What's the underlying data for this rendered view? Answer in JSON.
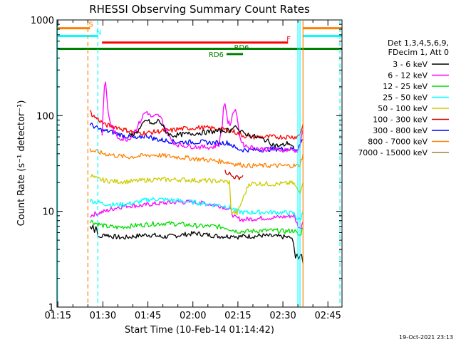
{
  "chart_data": {
    "type": "line",
    "title": "RHESSI Observing Summary Count Rates",
    "xlabel": "Start Time (10-Feb-14 01:14:42)",
    "ylabel": "Count Rate (s⁻¹ detector⁻¹)",
    "x_unit": "minutes after 01:14:42",
    "xlim": [
      0,
      95
    ],
    "ylim": [
      1,
      1000
    ],
    "yscale": "log",
    "x_ticks": [
      {
        "x": 0.3,
        "label": "01:15"
      },
      {
        "x": 15.3,
        "label": "01:30"
      },
      {
        "x": 30.3,
        "label": "01:45"
      },
      {
        "x": 45.3,
        "label": "02:00"
      },
      {
        "x": 60.3,
        "label": "02:15"
      },
      {
        "x": 75.3,
        "label": "02:30"
      },
      {
        "x": 90.3,
        "label": "02:45"
      }
    ],
    "y_ticks": [
      {
        "y": 1,
        "label": "1"
      },
      {
        "y": 10,
        "label": "10"
      },
      {
        "y": 100,
        "label": "100"
      },
      {
        "y": 1000,
        "label": "1000"
      }
    ],
    "legend": {
      "placement": "right",
      "header": [
        "Det 1,3,4,5,6,9,",
        "FDecim 1, Att 0"
      ]
    },
    "series": [
      {
        "name": "3 - 6 keV",
        "color": "#000000",
        "x": [
          11,
          11.5,
          12,
          12.5,
          13,
          14,
          16,
          18,
          22,
          26,
          30,
          33,
          35,
          38,
          42,
          46,
          50,
          54,
          56,
          58,
          58.5,
          60,
          62,
          64,
          66,
          68,
          72,
          76,
          78,
          79,
          79.5,
          80,
          80.5,
          81,
          81.5,
          82
        ],
        "y": [
          7,
          6.5,
          7.5,
          6.2,
          7,
          5.2,
          5.8,
          5.5,
          5.3,
          5.5,
          5.7,
          5.6,
          5.4,
          5.5,
          5.7,
          5.9,
          5.7,
          5.5,
          5.5,
          5.5,
          5.7,
          5.4,
          5.5,
          5.5,
          5.5,
          5.6,
          5.5,
          5.4,
          5.3,
          4.5,
          3.3,
          3.6,
          3.0,
          3.4,
          3.7,
          2.8
        ]
      },
      {
        "name": "6 - 12 keV",
        "color": "#ff00ff",
        "x": [
          11,
          13,
          16,
          18,
          20,
          24,
          27,
          29,
          30,
          33,
          35,
          40,
          45,
          50,
          54,
          56,
          58,
          59,
          60,
          62,
          64,
          66,
          68,
          72,
          76,
          78,
          79,
          80,
          81,
          82
        ],
        "y": [
          9,
          9.5,
          10,
          10.5,
          11,
          11.5,
          11.5,
          11.5,
          11.8,
          12,
          12.2,
          12.5,
          12.5,
          12,
          11.5,
          11,
          10.2,
          8.7,
          8.5,
          8.2,
          8.3,
          8.4,
          8.5,
          8.6,
          8.8,
          9,
          9,
          7.5,
          6.5,
          8
        ]
      },
      {
        "name": "12 - 25 keV",
        "color": "#00dd00",
        "x": [
          11,
          13,
          16,
          20,
          24,
          28,
          32,
          36,
          40,
          44,
          48,
          52,
          56,
          58,
          60,
          64,
          68,
          72,
          76,
          79,
          81,
          82
        ],
        "y": [
          8,
          7.5,
          7,
          6.8,
          7,
          7.2,
          7.4,
          7.5,
          7.4,
          7.2,
          7,
          7,
          6.8,
          6.5,
          6.2,
          6.2,
          6.3,
          6.3,
          6.2,
          6.3,
          5.5,
          7
        ]
      },
      {
        "name": "25 - 50 keV",
        "color": "#00ffff",
        "x": [
          11,
          13,
          16,
          18,
          20,
          24,
          27,
          29,
          30,
          33,
          35,
          40,
          45,
          50,
          54,
          56,
          58,
          59,
          60,
          62,
          64,
          66,
          68,
          72,
          76,
          78,
          79,
          80,
          81,
          82
        ],
        "y": [
          13,
          12.5,
          12,
          11.8,
          11.7,
          12,
          12.5,
          13,
          13.2,
          13.5,
          13.3,
          13,
          12.5,
          12,
          11.6,
          11.3,
          11,
          10.5,
          10,
          9.8,
          9.7,
          9.8,
          9.8,
          9.8,
          9.7,
          9.6,
          9.5,
          8.5,
          8,
          10
        ]
      },
      {
        "name": "50 - 100 keV",
        "color": "#cccc00",
        "x": [
          11,
          13,
          16,
          20,
          24,
          28,
          32,
          36,
          40,
          44,
          48,
          52,
          56,
          57.5,
          58,
          60,
          64,
          68,
          72,
          76,
          78,
          79,
          80,
          81,
          82
        ],
        "y": [
          24,
          22,
          21,
          20.5,
          20.5,
          21,
          21.5,
          21.5,
          21.5,
          21.3,
          21,
          20.8,
          20.5,
          20.2,
          10,
          9.5,
          19.5,
          19.5,
          19.3,
          19.5,
          19.8,
          19.5,
          17,
          16,
          21
        ]
      },
      {
        "name": "100 - 300 keV",
        "color": "#cc0000",
        "x": [
          56,
          57.5,
          58,
          60,
          61.5,
          62
        ],
        "y": [
          26,
          25,
          23.5,
          22.5,
          23,
          23.5
        ]
      },
      {
        "name": "300 - 800 keV",
        "color": "#0000ff",
        "x": [
          11,
          13,
          15,
          18,
          20,
          22,
          24,
          26,
          27,
          28,
          30,
          32,
          34,
          36,
          38,
          40,
          44,
          48,
          52,
          56,
          57,
          58,
          60,
          62,
          64,
          68,
          72,
          76,
          78,
          79,
          80,
          81,
          82
        ],
        "y": [
          82,
          75,
          70,
          68,
          65,
          62,
          60,
          58,
          57,
          60,
          62,
          58,
          56,
          55,
          54,
          53,
          53,
          53,
          52,
          52,
          52,
          50,
          45,
          44,
          44,
          44,
          45,
          45,
          45,
          45,
          45,
          50,
          58
        ]
      },
      {
        "name": "800 - 7000 keV",
        "color": "#ff8000",
        "x": [
          11,
          13,
          16,
          20,
          24,
          28,
          32,
          36,
          40,
          44,
          48,
          52,
          56,
          58,
          60,
          64,
          68,
          72,
          76,
          78,
          80,
          81,
          82
        ],
        "y": [
          44,
          42,
          40,
          38,
          37,
          38,
          39,
          38,
          37,
          36,
          35,
          34,
          33,
          32,
          31,
          30,
          30,
          30,
          30,
          30,
          30,
          31,
          40
        ]
      },
      {
        "name": "7000 - 15000 keV",
        "color": "#a08040",
        "x": [],
        "y": []
      },
      {
        "name": "",
        "color": "#ff0000",
        "x": [
          11,
          12,
          13,
          14,
          15,
          16,
          18,
          20,
          22,
          25,
          28,
          30,
          33,
          36,
          38,
          40,
          44,
          48,
          52,
          54,
          56,
          58,
          60,
          62,
          64,
          66,
          68,
          72,
          76,
          78,
          79,
          80,
          81,
          82
        ],
        "y": [
          110,
          100,
          95,
          90,
          85,
          80,
          78,
          76,
          72,
          68,
          66,
          66,
          68,
          70,
          70,
          72,
          74,
          75,
          74,
          73,
          72,
          70,
          66,
          62,
          60,
          60,
          60,
          60,
          60,
          60,
          60,
          60,
          65,
          80
        ]
      },
      {
        "name": "",
        "color": "#ff00ff",
        "x": [
          15,
          15.8,
          16.2,
          17,
          17.6,
          18,
          20,
          22,
          24,
          26,
          28,
          29,
          30,
          31,
          32,
          33,
          34,
          35,
          36,
          37,
          38,
          40,
          44,
          48,
          52,
          54,
          55,
          55.5,
          56,
          56.5,
          57,
          58,
          58.5,
          59,
          59.5,
          60,
          60.5,
          61,
          61.5,
          62,
          64,
          68,
          72,
          76,
          78,
          79,
          80,
          81,
          82
        ],
        "y": [
          65,
          190,
          230,
          110,
          90,
          80,
          60,
          57,
          57,
          70,
          90,
          105,
          110,
          100,
          95,
          100,
          100,
          90,
          75,
          65,
          55,
          50,
          48,
          47,
          47,
          50,
          75,
          120,
          135,
          110,
          85,
          80,
          100,
          115,
          120,
          100,
          75,
          60,
          55,
          50,
          47,
          45,
          44,
          44,
          44,
          43,
          43,
          48,
          75
        ]
      },
      {
        "name": "",
        "color": "#000000",
        "x": [
          24,
          26,
          28,
          29,
          30,
          31,
          32,
          33,
          34,
          35,
          36,
          38,
          56,
          58,
          58.5,
          59,
          59.5,
          60,
          60.5,
          61,
          62,
          70,
          72,
          74,
          76,
          77,
          78,
          79
        ],
        "y": [
          62,
          65,
          75,
          85,
          90,
          85,
          80,
          85,
          90,
          80,
          70,
          62,
          70,
          70,
          75,
          80,
          82,
          75,
          70,
          68,
          66,
          55,
          50,
          48,
          50,
          52,
          50,
          45
        ]
      }
    ],
    "state_bars": [
      {
        "label": "S",
        "color": "#ff8000",
        "x0": 0,
        "x1": 11,
        "y": 820
      },
      {
        "label": "",
        "color": "#ff8000",
        "x0": 82,
        "x1": 95,
        "y": 820
      },
      {
        "label": "N",
        "color": "#00ffff",
        "x0": 0,
        "x1": 13.5,
        "y": 680
      },
      {
        "label": "",
        "color": "#00ffff",
        "x0": 82,
        "x1": 95,
        "y": 680
      },
      {
        "label": "F",
        "color": "#ff0000",
        "x0": 15,
        "x1": 77,
        "y": 580
      },
      {
        "label": "",
        "color": "#008000",
        "x0": 0,
        "x1": 95,
        "y": 500
      },
      {
        "label": "RD6",
        "color": "#008000",
        "x0": 56.5,
        "x1": 62,
        "y": 440
      }
    ],
    "state_labels": [
      {
        "text": "RD6",
        "color": "#008000",
        "x": 61.5,
        "y": 520
      }
    ],
    "vlines": [
      {
        "x": 0.2,
        "color": "#00ffff",
        "dash": false
      },
      {
        "x": 10.3,
        "color": "#ff8000",
        "dash": true
      },
      {
        "x": 13.6,
        "color": "#00ffff",
        "dash": true
      },
      {
        "x": 80.3,
        "color": "#00ffff",
        "dash": false
      },
      {
        "x": 81.0,
        "color": "#00ffff",
        "dash": false
      },
      {
        "x": 82.0,
        "color": "#ff8000",
        "dash": false
      },
      {
        "x": 94.3,
        "color": "#00ffff",
        "dash": true
      }
    ],
    "timestamp": "19-Oct-2021 23:13"
  }
}
